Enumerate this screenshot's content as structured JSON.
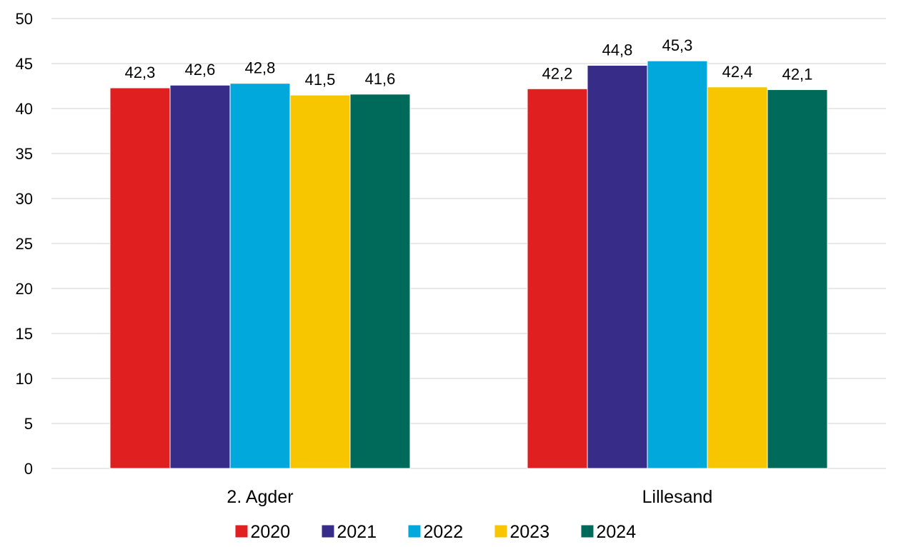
{
  "chart_data": {
    "type": "bar",
    "title": "",
    "xlabel": "",
    "ylabel": "",
    "categories": [
      "2. Agder",
      "Lillesand"
    ],
    "series": [
      {
        "name": "2020",
        "values": [
          42.3,
          42.2
        ],
        "labels": [
          "42,3",
          "42,2"
        ],
        "color": "#e02020"
      },
      {
        "name": "2021",
        "values": [
          42.6,
          44.8
        ],
        "labels": [
          "42,6",
          "44,8"
        ],
        "color": "#372d88"
      },
      {
        "name": "2022",
        "values": [
          42.8,
          45.3
        ],
        "labels": [
          "42,8",
          "45,3"
        ],
        "color": "#00a8dc"
      },
      {
        "name": "2023",
        "values": [
          41.5,
          42.4
        ],
        "labels": [
          "41,5",
          "42,4"
        ],
        "color": "#f8c600"
      },
      {
        "name": "2024",
        "values": [
          41.6,
          42.1
        ],
        "labels": [
          "41,6",
          "42,1"
        ],
        "color": "#006a5a"
      }
    ],
    "ylim": [
      0,
      50
    ],
    "yticks": [
      "0",
      "5",
      "10",
      "15",
      "20",
      "25",
      "30",
      "35",
      "40",
      "45",
      "50"
    ],
    "grid": true,
    "legend": "bottom"
  }
}
